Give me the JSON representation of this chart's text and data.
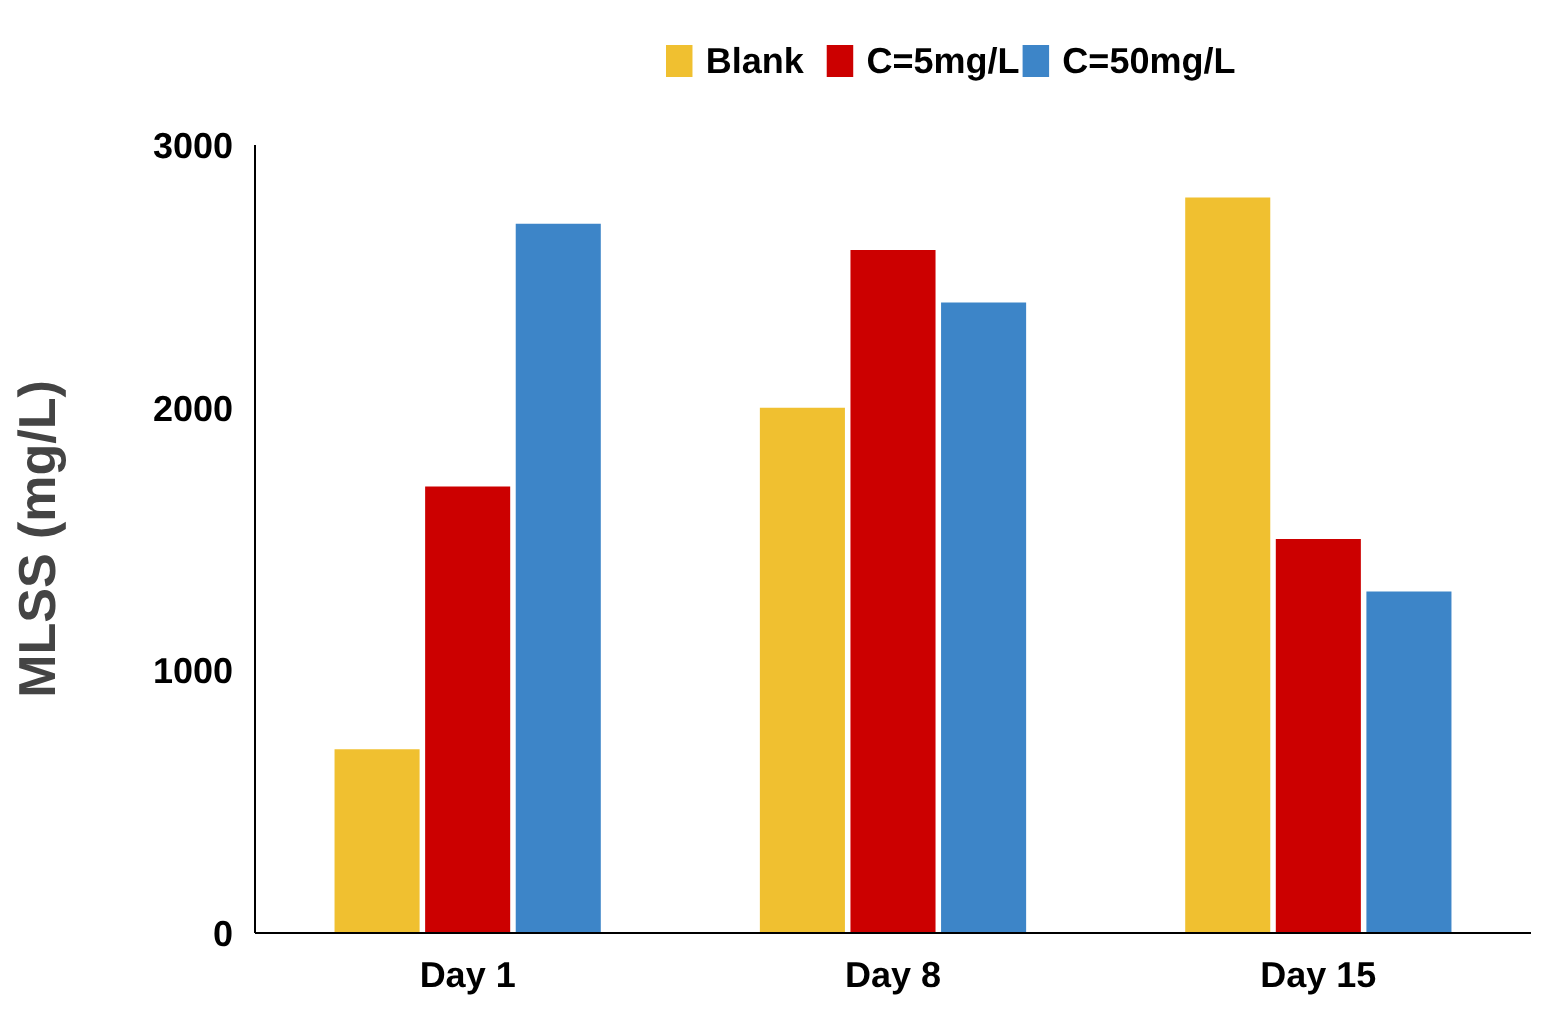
{
  "chart_data": {
    "type": "bar",
    "ylabel": "MLSS (mg/L)",
    "categories": [
      "Day 1",
      "Day 8",
      "Day 15"
    ],
    "series": [
      {
        "name": "Blank",
        "color": "#f0c030",
        "values": [
          700,
          2000,
          2800
        ]
      },
      {
        "name": "C=5mg/L",
        "color": "#cc0000",
        "values": [
          1700,
          2600,
          1500
        ]
      },
      {
        "name": "C=50mg/L",
        "color": "#3d85c8",
        "values": [
          2700,
          2400,
          1300
        ]
      }
    ],
    "ylim": [
      0,
      3000
    ],
    "yticks": [
      0,
      1000,
      2000,
      3000
    ],
    "grid": false,
    "legend": "top"
  }
}
